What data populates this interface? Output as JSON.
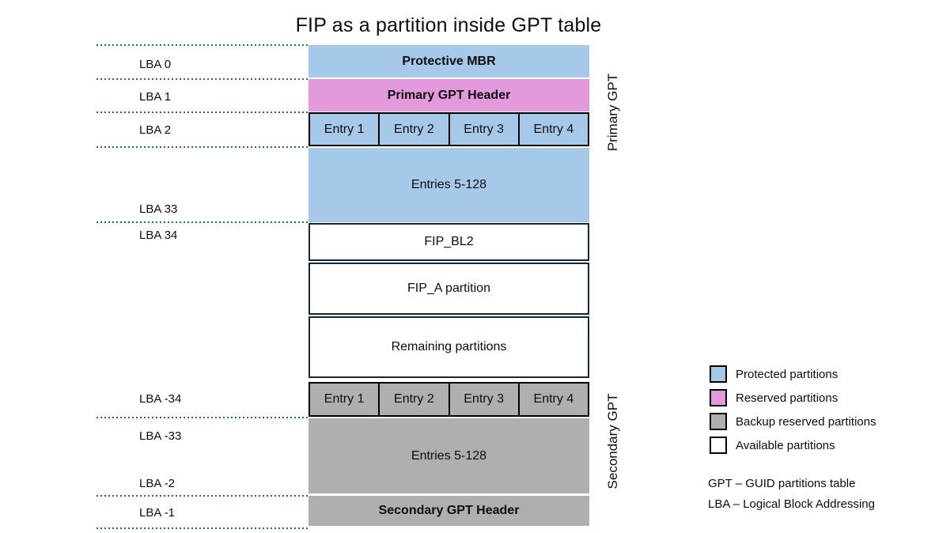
{
  "title": "FIP as a partition inside GPT table",
  "lba_labels": [
    "LBA 0",
    "LBA 1",
    "LBA 2",
    "LBA 33",
    "LBA 34",
    "LBA -34",
    "LBA -33",
    "LBA -2",
    "LBA -1"
  ],
  "stack": {
    "protective_mbr": "Protective MBR",
    "primary_gpt_header": "Primary GPT Header",
    "primary_entries": [
      "Entry 1",
      "Entry 2",
      "Entry 3",
      "Entry 4"
    ],
    "primary_entries_rest": "Entries 5-128",
    "fip_bl2": "FIP_BL2",
    "fip_a_partition": "FIP_A partition",
    "remaining_partitions": "Remaining partitions",
    "secondary_entries": [
      "Entry 1",
      "Entry 2",
      "Entry 3",
      "Entry 4"
    ],
    "secondary_entries_rest": "Entries 5-128",
    "secondary_gpt_header": "Secondary GPT Header"
  },
  "side_labels": {
    "primary": "Primary GPT",
    "secondary": "Secondary GPT"
  },
  "legend": {
    "items": [
      {
        "label": "Protected partitions",
        "color": "#A7C9E9"
      },
      {
        "label": "Reserved partitions",
        "color": "#E29ADB"
      },
      {
        "label": "Backup reserved partitions",
        "color": "#AFAFAF"
      },
      {
        "label": "Available partitions",
        "color": "#FFFFFF"
      }
    ],
    "abbreviations": [
      "GPT – GUID partitions table",
      "LBA – Logical Block Addressing"
    ]
  },
  "colors": {
    "protected": "#A7C9E9",
    "reserved": "#E29ADB",
    "backup": "#AFAFAF",
    "available": "#FFFFFF",
    "dotted_line": "#1E6A7B",
    "white_block_border": "#0F2A3A",
    "entry_border": "#000000"
  }
}
